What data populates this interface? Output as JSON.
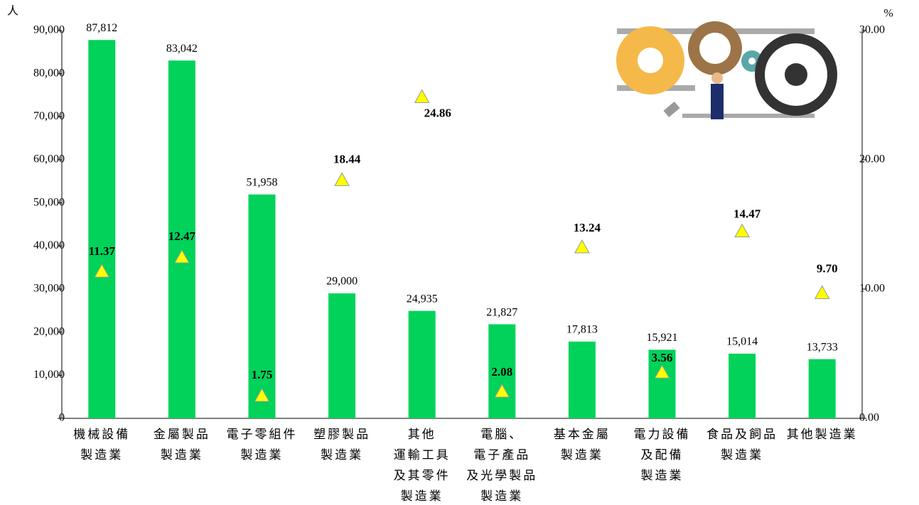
{
  "chart_data": {
    "type": "bar",
    "y_unit": "人",
    "y2_unit": "%",
    "categories": [
      "機械設備\n製造業",
      "金屬製品\n製造業",
      "電子零組件\n製造業",
      "塑膠製品\n製造業",
      "其他\n運輸工具\n及其零件\n製造業",
      "電腦、\n電子產品\n及光學製品\n製造業",
      "基本金屬\n製造業",
      "電力設備\n及配備\n製造業",
      "食品及飼品\n製造業",
      "其他製造業"
    ],
    "series": [
      {
        "type": "bar",
        "color": "#00d25a",
        "values": [
          87812,
          83042,
          51958,
          29000,
          24935,
          21827,
          17813,
          15921,
          15014,
          13733
        ],
        "value_labels": [
          "87,812",
          "83,042",
          "51,958",
          "29,000",
          "24,935",
          "21,827",
          "17,813",
          "15,921",
          "15,014",
          "13,733"
        ]
      },
      {
        "type": "marker",
        "axis": "y2",
        "color": "#ffff00",
        "values": [
          11.37,
          12.47,
          1.75,
          18.44,
          24.86,
          2.08,
          13.24,
          3.56,
          14.47,
          9.7
        ],
        "value_labels": [
          "11.37",
          "12.47",
          "1.75",
          "18.44",
          "24.86",
          "2.08",
          "13.24",
          "3.56",
          "14.47",
          "9.70"
        ]
      }
    ],
    "ylim": [
      0,
      90000
    ],
    "yticks": [
      0,
      {
        "value": 10000,
        "label": "10,000"
      },
      {
        "value": 20000,
        "label": "20,000"
      },
      {
        "value": 30000,
        "label": "30,000"
      },
      {
        "value": 40000,
        "label": "40,000"
      },
      {
        "value": 50000,
        "label": "50,000"
      },
      {
        "value": 60000,
        "label": "60,000"
      },
      {
        "value": 70000,
        "label": "70,000"
      },
      {
        "value": 80000,
        "label": "80,000"
      },
      {
        "value": 90000,
        "label": "90,000"
      }
    ],
    "y2lim": [
      0,
      30
    ],
    "y2ticks": [
      {
        "value": 0,
        "label": "0.00"
      },
      {
        "value": 10,
        "label": "10.00"
      },
      {
        "value": 20,
        "label": "20.00"
      },
      {
        "value": 30,
        "label": "30.00"
      }
    ]
  }
}
